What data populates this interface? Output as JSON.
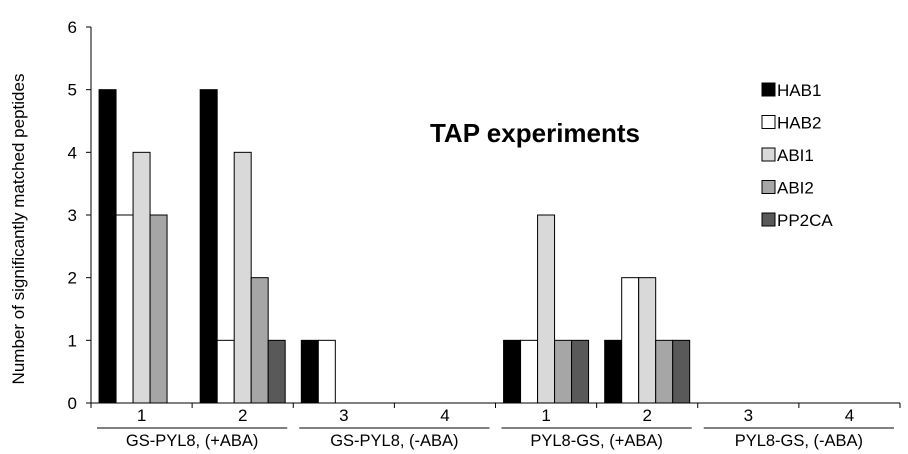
{
  "chart_data": {
    "type": "bar",
    "title": "TAP experiments",
    "ylabel": "Number of significantly matched peptides",
    "xlabel": "",
    "ylim": [
      0,
      6
    ],
    "yticks": [
      0,
      1,
      2,
      3,
      4,
      5,
      6
    ],
    "grid": false,
    "legend_position": "right",
    "categories": [
      "1",
      "2",
      "3",
      "4",
      "1",
      "2",
      "3",
      "4"
    ],
    "groups": [
      {
        "label": "GS-PYL8, (+ABA)",
        "categories": [
          0,
          1
        ]
      },
      {
        "label": "GS-PYL8, (-ABA)",
        "categories": [
          2,
          3
        ]
      },
      {
        "label": "PYL8-GS, (+ABA)",
        "categories": [
          4,
          5
        ]
      },
      {
        "label": "PYL8-GS, (-ABA)",
        "categories": [
          6,
          7
        ]
      }
    ],
    "series": [
      {
        "name": "HAB1",
        "color": "#000000",
        "values": [
          5,
          5,
          1,
          0,
          1,
          1,
          0,
          0
        ]
      },
      {
        "name": "HAB2",
        "color": "#ffffff",
        "values": [
          3,
          1,
          1,
          0,
          1,
          2,
          0,
          0
        ]
      },
      {
        "name": "ABI1",
        "color": "#d9d9d9",
        "values": [
          4,
          4,
          0,
          0,
          3,
          2,
          0,
          0
        ]
      },
      {
        "name": "ABI2",
        "color": "#a6a6a6",
        "values": [
          3,
          2,
          0,
          0,
          1,
          1,
          0,
          0
        ]
      },
      {
        "name": "PP2CA",
        "color": "#595959",
        "values": [
          0,
          1,
          0,
          0,
          1,
          1,
          0,
          0
        ]
      }
    ]
  }
}
